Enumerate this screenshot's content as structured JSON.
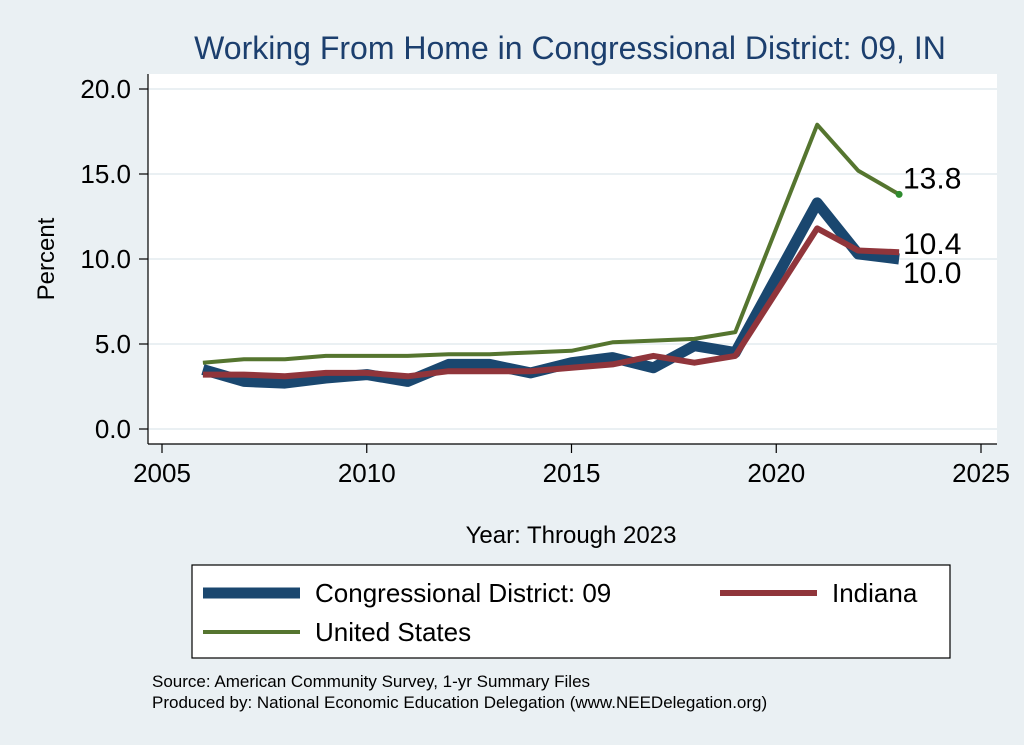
{
  "chart_data": {
    "type": "line",
    "title": "Working From Home in Congressional District: 09, IN",
    "xlabel": "Year: Through 2023",
    "ylabel": "Percent",
    "xlim": [
      2005,
      2025
    ],
    "ylim": [
      0,
      20
    ],
    "x_ticks": [
      "2005",
      "2010",
      "2015",
      "2020",
      "2025"
    ],
    "y_ticks": [
      "0.0",
      "5.0",
      "10.0",
      "15.0",
      "20.0"
    ],
    "grid": true,
    "legend_position": "bottom",
    "x": [
      2006,
      2007,
      2008,
      2009,
      2010,
      2011,
      2012,
      2013,
      2014,
      2015,
      2016,
      2017,
      2018,
      2019,
      2021,
      2022,
      2023
    ],
    "series": [
      {
        "name": "Congressional District: 09",
        "color": "#1a476f",
        "values": [
          3.5,
          2.8,
          2.7,
          3.0,
          3.2,
          2.8,
          3.8,
          3.8,
          3.3,
          3.9,
          4.2,
          3.6,
          4.9,
          4.5,
          13.3,
          10.3,
          10.0
        ],
        "end_label": "10.0"
      },
      {
        "name": "Indiana",
        "color": "#90353b",
        "values": [
          3.2,
          3.2,
          3.1,
          3.3,
          3.3,
          3.1,
          3.4,
          3.4,
          3.4,
          3.6,
          3.8,
          4.3,
          3.9,
          4.3,
          11.8,
          10.5,
          10.4
        ],
        "end_label": "10.4"
      },
      {
        "name": "United States",
        "color": "#55752f",
        "values": [
          3.9,
          4.1,
          4.1,
          4.3,
          4.3,
          4.3,
          4.4,
          4.4,
          4.5,
          4.6,
          5.1,
          5.2,
          5.3,
          5.7,
          17.9,
          15.2,
          13.8
        ],
        "end_label": "13.8"
      }
    ],
    "notes": [
      "Source: American Community Survey, 1-yr Summary Files",
      "Produced by: National Economic Education Delegation (www.NEEDelegation.org)"
    ]
  }
}
